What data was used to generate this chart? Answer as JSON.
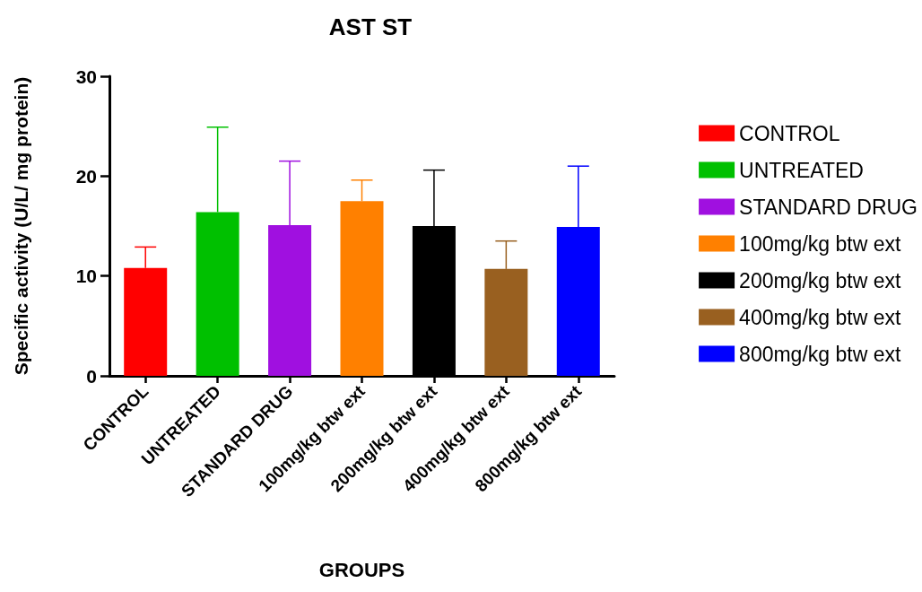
{
  "chart_data": {
    "type": "bar",
    "title": "AST ST",
    "xlabel": "GROUPS",
    "ylabel": "Specific activity (U/L/ mg protein)",
    "categories": [
      "CONTROL",
      "UNTREATED",
      "STANDARD DRUG",
      "100mg/kg btw ext",
      "200mg/kg btw ext",
      "400mg/kg btw ext",
      "800mg/kg btw ext"
    ],
    "series": [
      {
        "name": "CONTROL",
        "color": "#ff0000",
        "values": [
          10.8,
          null,
          null,
          null,
          null,
          null,
          null
        ],
        "errors": [
          [
            10.8,
            12.9
          ],
          null,
          null,
          null,
          null,
          null,
          null
        ]
      },
      {
        "name": "UNTREATED",
        "color": "#00c000",
        "values": [
          null,
          16.4,
          null,
          null,
          null,
          null,
          null
        ],
        "errors": [
          null,
          [
            16.4,
            24.9
          ],
          null,
          null,
          null,
          null,
          null
        ]
      },
      {
        "name": "STANDARD DRUG",
        "color": "#a010e0",
        "values": [
          null,
          null,
          15.1,
          null,
          null,
          null,
          null
        ],
        "errors": [
          null,
          null,
          [
            15.1,
            21.5
          ],
          null,
          null,
          null,
          null
        ]
      },
      {
        "name": "100mg/kg btw ext",
        "color": "#ff8000",
        "values": [
          null,
          null,
          null,
          17.5,
          null,
          null,
          null
        ],
        "errors": [
          null,
          null,
          null,
          [
            17.5,
            19.6
          ],
          null,
          null,
          null
        ]
      },
      {
        "name": "200mg/kg btw ext",
        "color": "#000000",
        "values": [
          null,
          null,
          null,
          null,
          15.0,
          null,
          null
        ],
        "errors": [
          null,
          null,
          null,
          null,
          [
            15.0,
            20.6
          ],
          null,
          null
        ]
      },
      {
        "name": "400mg/kg btw ext",
        "color": "#996020",
        "values": [
          null,
          null,
          null,
          null,
          null,
          10.7,
          null
        ],
        "errors": [
          null,
          null,
          null,
          null,
          null,
          [
            10.7,
            13.5
          ],
          null
        ]
      },
      {
        "name": "800mg/kg btw ext",
        "color": "#0000ff",
        "values": [
          null,
          null,
          null,
          null,
          null,
          null,
          14.9
        ],
        "errors": [
          null,
          null,
          null,
          null,
          null,
          null,
          [
            14.9,
            21.0
          ]
        ]
      }
    ],
    "ylim": [
      0,
      30
    ],
    "yticks": [
      0,
      10,
      20,
      30
    ],
    "grid": false,
    "legend": "right"
  }
}
